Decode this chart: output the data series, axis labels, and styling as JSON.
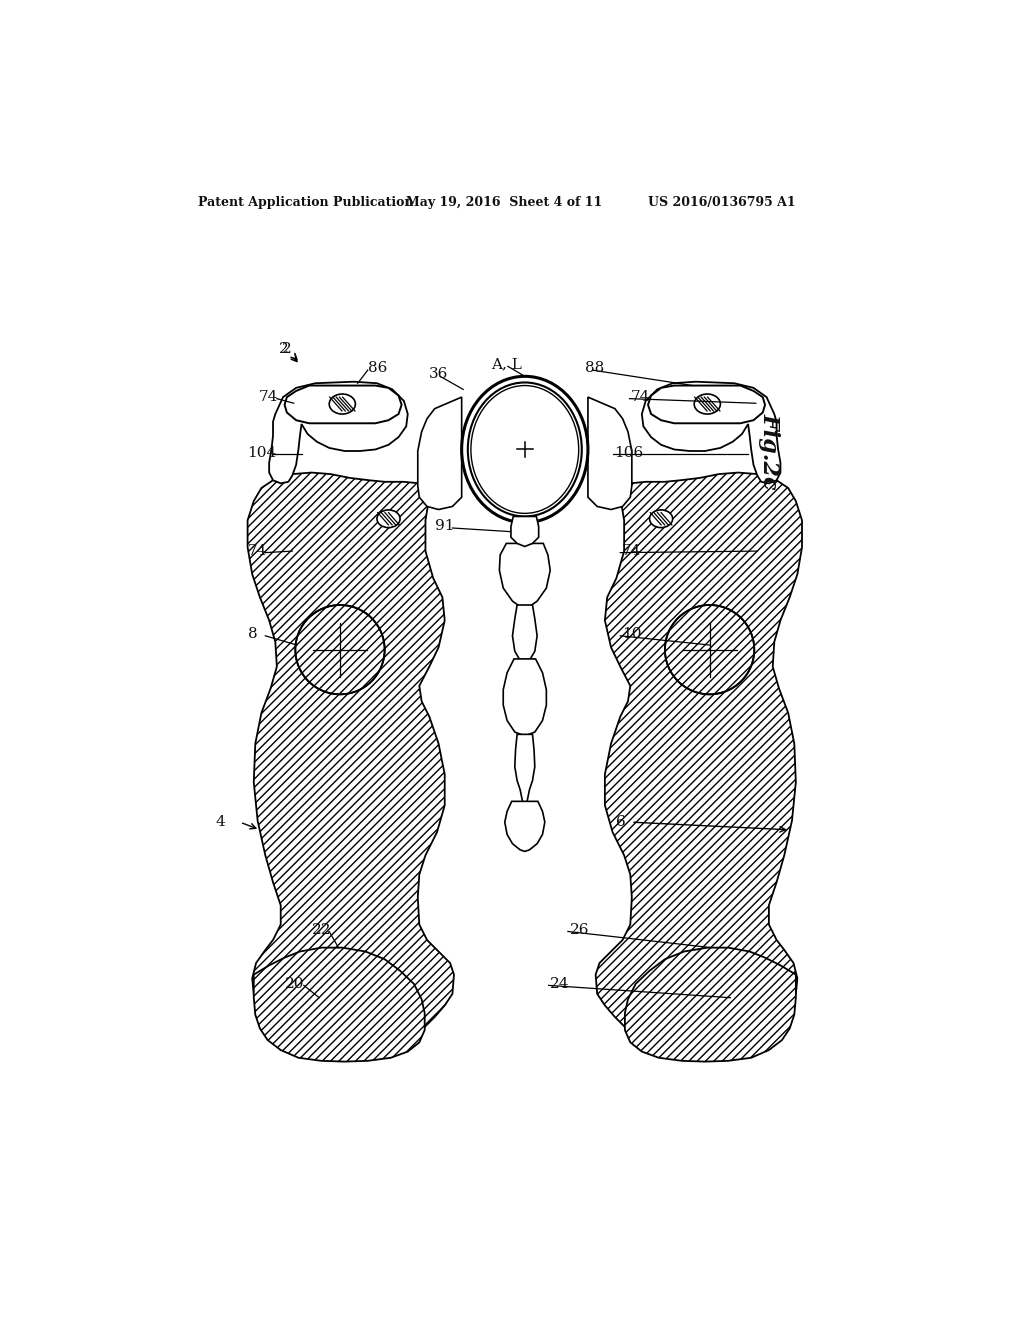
{
  "background_color": "#ffffff",
  "header_left": "Patent Application Publication",
  "header_center": "May 19, 2016  Sheet 4 of 11",
  "header_right": "US 2016/0136795 A1",
  "fig_label": "Fig.2c",
  "line_color": "#1a1a1a",
  "hatch_color": "#1a1a1a"
}
